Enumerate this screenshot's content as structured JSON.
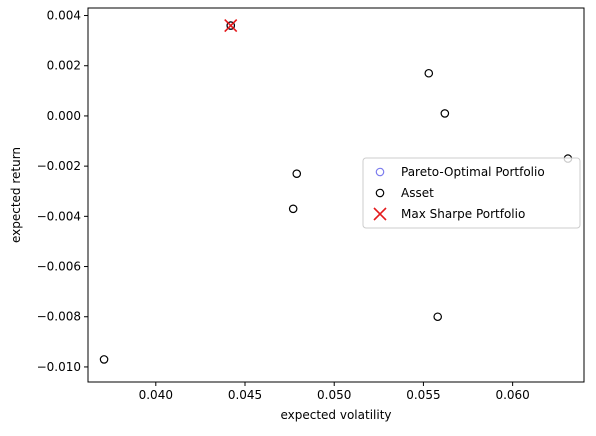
{
  "chart_data": {
    "type": "scatter",
    "xlabel": "expected volatility",
    "ylabel": "expected return",
    "xlim": [
      0.0362,
      0.064
    ],
    "ylim": [
      -0.0106,
      0.0043
    ],
    "x_ticks": [
      0.04,
      0.045,
      0.05,
      0.055,
      0.06
    ],
    "x_tick_labels": [
      "0.040",
      "0.045",
      "0.050",
      "0.055",
      "0.060"
    ],
    "y_ticks": [
      0.004,
      0.002,
      0.0,
      -0.002,
      -0.004,
      -0.006,
      -0.008,
      -0.01
    ],
    "y_tick_labels": [
      "0.004",
      "0.002",
      "0.000",
      "−0.002",
      "−0.004",
      "−0.006",
      "−0.008",
      "−0.010"
    ],
    "grid": false,
    "legend_position": "center-right",
    "series": [
      {
        "name": "Pareto-Optimal Portfolio",
        "marker": "open-circle",
        "color": "#7b7bee",
        "points": [
          {
            "x": 0.0442,
            "y": 0.0036
          }
        ]
      },
      {
        "name": "Asset",
        "marker": "open-circle",
        "color": "#000000",
        "points": [
          {
            "x": 0.0442,
            "y": 0.0036
          },
          {
            "x": 0.0553,
            "y": 0.0017
          },
          {
            "x": 0.0562,
            "y": 0.0001
          },
          {
            "x": 0.0631,
            "y": -0.0017
          },
          {
            "x": 0.0479,
            "y": -0.0023
          },
          {
            "x": 0.0477,
            "y": -0.0037
          },
          {
            "x": 0.0558,
            "y": -0.008
          },
          {
            "x": 0.0371,
            "y": -0.0097
          }
        ]
      },
      {
        "name": "Max Sharpe Portfolio",
        "marker": "x",
        "color": "#e41a1c",
        "points": [
          {
            "x": 0.0442,
            "y": 0.0036
          }
        ]
      }
    ]
  }
}
